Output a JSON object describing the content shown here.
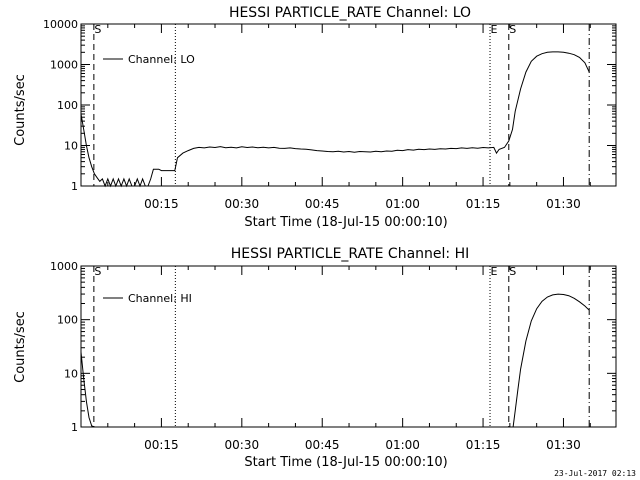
{
  "chart_data": [
    {
      "type": "line",
      "title": "HESSI PARTICLE_RATE Channel: LO",
      "xlabel": "Start Time (18-Jul-15 00:00:10)",
      "ylabel": "Counts/sec",
      "xlim_min": [
        0,
        99.8
      ],
      "ylim": [
        1,
        10000
      ],
      "yscale": "log",
      "x_ticks": [
        {
          "min": 15,
          "label": "00:15"
        },
        {
          "min": 30,
          "label": "00:30"
        },
        {
          "min": 45,
          "label": "00:45"
        },
        {
          "min": 60,
          "label": "01:00"
        },
        {
          "min": 75,
          "label": "01:15"
        },
        {
          "min": 90,
          "label": "01:30"
        }
      ],
      "y_ticks": [
        {
          "value": 1,
          "label": "1"
        },
        {
          "value": 10,
          "label": "10"
        },
        {
          "value": 100,
          "label": "100"
        },
        {
          "value": 1000,
          "label": "1000"
        },
        {
          "value": 10000,
          "label": "10000"
        }
      ],
      "legend": {
        "position": "top-left",
        "label": "Channel: LO"
      },
      "markers": [
        {
          "x_min": 2.4,
          "style": "dashed",
          "label": "S"
        },
        {
          "x_min": 17.6,
          "style": "dotted",
          "label": ""
        },
        {
          "x_min": 76.3,
          "style": "dotted",
          "label": "E"
        },
        {
          "x_min": 79.8,
          "style": "dashed",
          "label": "S"
        },
        {
          "x_min": 94.8,
          "style": "dashdot",
          "label": ""
        }
      ],
      "series": [
        {
          "x_min": [
            0,
            0.5,
            1,
            1.5,
            2,
            2.5,
            3,
            3.5,
            4,
            4.5,
            5,
            5.5,
            6,
            6.5,
            7,
            7.5,
            8,
            8.5,
            9,
            9.5,
            10,
            10.5,
            11,
            11.5,
            12,
            12.5,
            13,
            13.5,
            14,
            14.5,
            15,
            15.5,
            16,
            16.5,
            17,
            17.5,
            18,
            19,
            20,
            21,
            22,
            23,
            24,
            25,
            26,
            27,
            28,
            29,
            30,
            31,
            32,
            33,
            34,
            35,
            36,
            37,
            38,
            39,
            40,
            41,
            42,
            43,
            44,
            45,
            46,
            47,
            48,
            49,
            50,
            51,
            52,
            53,
            54,
            55,
            56,
            57,
            58,
            59,
            60,
            61,
            62,
            63,
            64,
            65,
            66,
            67,
            68,
            69,
            70,
            71,
            72,
            73,
            74,
            75,
            76,
            77,
            77.5,
            78,
            79,
            79.8,
            80.5,
            81,
            82,
            83,
            84,
            85,
            86,
            87,
            88,
            89,
            90,
            91,
            92,
            93,
            94,
            94.8
          ],
          "values": [
            60,
            25,
            10,
            5,
            3,
            2,
            1.6,
            1.3,
            1.5,
            1,
            1.5,
            1,
            1.5,
            1,
            1.5,
            1,
            1.5,
            1,
            1.5,
            1,
            1,
            1.5,
            1,
            1.5,
            1,
            1,
            1.5,
            2.6,
            2.6,
            2.6,
            2.4,
            2.4,
            2.4,
            2.4,
            2.4,
            2.4,
            5,
            6.5,
            7.5,
            8.5,
            9,
            8.7,
            9.2,
            8.9,
            9.4,
            8.8,
            9.1,
            8.7,
            9.3,
            8.9,
            9.2,
            8.8,
            9.1,
            8.7,
            9,
            8.6,
            8.5,
            8.7,
            8.4,
            8.2,
            8.1,
            7.8,
            7.5,
            7.3,
            7.1,
            7,
            7.2,
            6.9,
            7.1,
            6.8,
            7.1,
            7,
            6.9,
            7.2,
            7,
            7.3,
            7.2,
            7.6,
            7.5,
            7.9,
            7.7,
            8.1,
            7.9,
            8.2,
            8,
            8.3,
            8.2,
            8.5,
            8.4,
            8.7,
            8.5,
            8.8,
            8.6,
            8.9,
            8.7,
            9,
            6.5,
            8,
            9,
            13,
            25,
            70,
            250,
            650,
            1200,
            1600,
            1850,
            2000,
            2050,
            2050,
            2000,
            1900,
            1750,
            1500,
            1100,
            650
          ]
        }
      ]
    },
    {
      "type": "line",
      "title": "HESSI PARTICLE_RATE Channel: HI",
      "xlabel": "Start Time (18-Jul-15 00:00:10)",
      "ylabel": "Counts/sec",
      "xlim_min": [
        0,
        99.8
      ],
      "ylim": [
        1,
        1000
      ],
      "yscale": "log",
      "x_ticks": [
        {
          "min": 15,
          "label": "00:15"
        },
        {
          "min": 30,
          "label": "00:30"
        },
        {
          "min": 45,
          "label": "00:45"
        },
        {
          "min": 60,
          "label": "01:00"
        },
        {
          "min": 75,
          "label": "01:15"
        },
        {
          "min": 90,
          "label": "01:30"
        }
      ],
      "y_ticks": [
        {
          "value": 1,
          "label": "1"
        },
        {
          "value": 10,
          "label": "10"
        },
        {
          "value": 100,
          "label": "100"
        },
        {
          "value": 1000,
          "label": "1000"
        }
      ],
      "legend": {
        "position": "top-left",
        "label": "Channel: HI"
      },
      "markers": [
        {
          "x_min": 2.4,
          "style": "dashed",
          "label": "S"
        },
        {
          "x_min": 17.6,
          "style": "dotted",
          "label": ""
        },
        {
          "x_min": 76.3,
          "style": "dotted",
          "label": "E"
        },
        {
          "x_min": 79.8,
          "style": "dashed",
          "label": "S"
        },
        {
          "x_min": 94.8,
          "style": "dashdot",
          "label": ""
        }
      ],
      "series": [
        {
          "x_min": [
            0,
            0.5,
            1,
            1.5,
            2,
            2.5
          ],
          "values": [
            25,
            8,
            3,
            1.5,
            1.05,
            1
          ]
        },
        {
          "x_min": [
            80.6,
            81,
            81.5,
            82,
            83,
            84,
            85,
            86,
            87,
            88,
            89,
            90,
            91,
            92,
            93,
            94,
            94.8
          ],
          "values": [
            1,
            2,
            5,
            12,
            40,
            95,
            160,
            220,
            265,
            290,
            300,
            295,
            280,
            250,
            215,
            180,
            150
          ]
        }
      ]
    }
  ],
  "footer": {
    "timestamp": "23-Jul-2017 02:13"
  }
}
